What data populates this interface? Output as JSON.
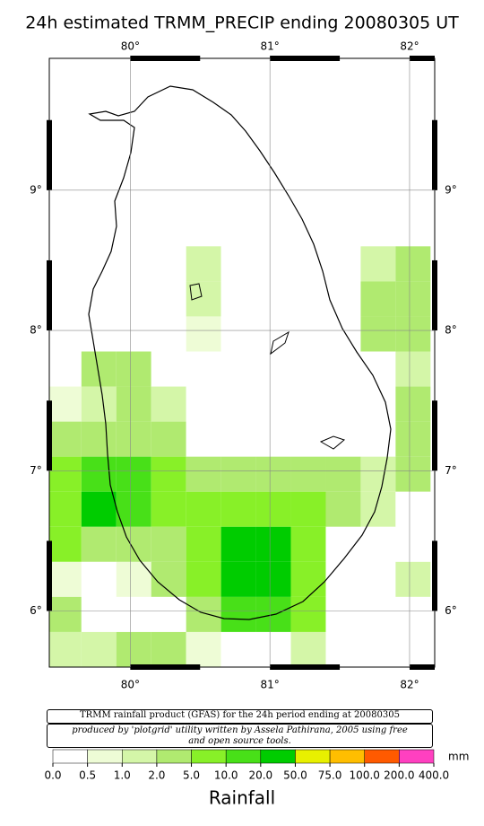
{
  "map": {
    "title": "24h estimated TRMM_PRECIP  ending 20080305 UT",
    "lon_range": [
      79.42,
      82.18
    ],
    "lat_range": [
      5.6,
      9.94
    ],
    "lon_ticks": [
      {
        "value": 80,
        "label": "80°"
      },
      {
        "value": 81,
        "label": "81°"
      },
      {
        "value": 82,
        "label": "82°"
      }
    ],
    "lat_ticks": [
      {
        "value": 6,
        "label": "6°"
      },
      {
        "value": 7,
        "label": "7°"
      },
      {
        "value": 8,
        "label": "8°"
      },
      {
        "value": 9,
        "label": "9°"
      }
    ],
    "grid": {
      "lon0": 79.4,
      "lat0": 8.6,
      "step": 0.25,
      "values": [
        [
          0,
          0,
          0,
          0,
          1,
          0,
          0,
          0,
          0,
          1.5,
          3
        ],
        [
          0,
          0,
          0,
          0,
          1.5,
          0,
          0,
          0,
          0,
          2,
          3
        ],
        [
          0,
          0,
          0,
          0,
          0.7,
          0,
          0,
          0,
          0,
          2,
          2
        ],
        [
          0,
          2,
          2,
          0,
          0,
          0,
          0,
          0,
          0,
          0,
          1.5
        ],
        [
          0.7,
          1.5,
          2,
          1,
          0,
          0,
          0,
          0,
          0,
          0,
          4
        ],
        [
          3,
          3,
          3,
          2.5,
          0,
          0,
          0,
          0,
          0,
          0,
          4
        ],
        [
          6,
          15,
          15,
          6,
          4,
          3.5,
          3.5,
          4,
          4,
          1.5,
          2
        ],
        [
          8,
          20,
          12,
          7,
          6,
          8,
          8,
          6,
          4,
          1.5,
          0
        ],
        [
          5,
          4,
          3,
          4,
          8,
          25,
          25,
          6,
          0,
          0,
          0
        ],
        [
          0.7,
          0,
          0.5,
          3,
          5,
          25,
          20,
          5,
          0,
          0,
          1
        ],
        [
          2,
          0,
          0,
          0,
          4,
          12,
          12,
          6,
          0,
          0,
          0
        ],
        [
          1,
          1,
          3,
          2,
          0.6,
          0,
          0,
          1,
          0,
          0,
          0
        ]
      ]
    },
    "caption": "TRMM rainfall product (GFAS) for the 24h period ending at 20080305",
    "credit": "produced by 'plotgrid' utility written by Assela Pathirana, 2005 using free and open source tools.",
    "colorbar": {
      "bounds": [
        {
          "value": 0,
          "label": "0.0"
        },
        {
          "value": 0.5,
          "label": "0.5"
        },
        {
          "value": 1,
          "label": "1.0"
        },
        {
          "value": 2,
          "label": "2.0"
        },
        {
          "value": 5,
          "label": "5.0"
        },
        {
          "value": 10,
          "label": "10.0"
        },
        {
          "value": 20,
          "label": "20.0"
        },
        {
          "value": 50,
          "label": "50.0"
        },
        {
          "value": 75,
          "label": "75.0"
        },
        {
          "value": 100,
          "label": "100.0"
        },
        {
          "value": 200,
          "label": "200.0"
        },
        {
          "value": 400,
          "label": "400.0"
        }
      ],
      "colors": [
        "#ffffff",
        "#eefcd6",
        "#d4f6a8",
        "#b0ea70",
        "#88f028",
        "#48e018",
        "#00cc00",
        "#e8f000",
        "#ffbe00",
        "#ff5a00",
        "#ff40c0"
      ],
      "unit": "mm",
      "label": "Rainfall"
    }
  }
}
